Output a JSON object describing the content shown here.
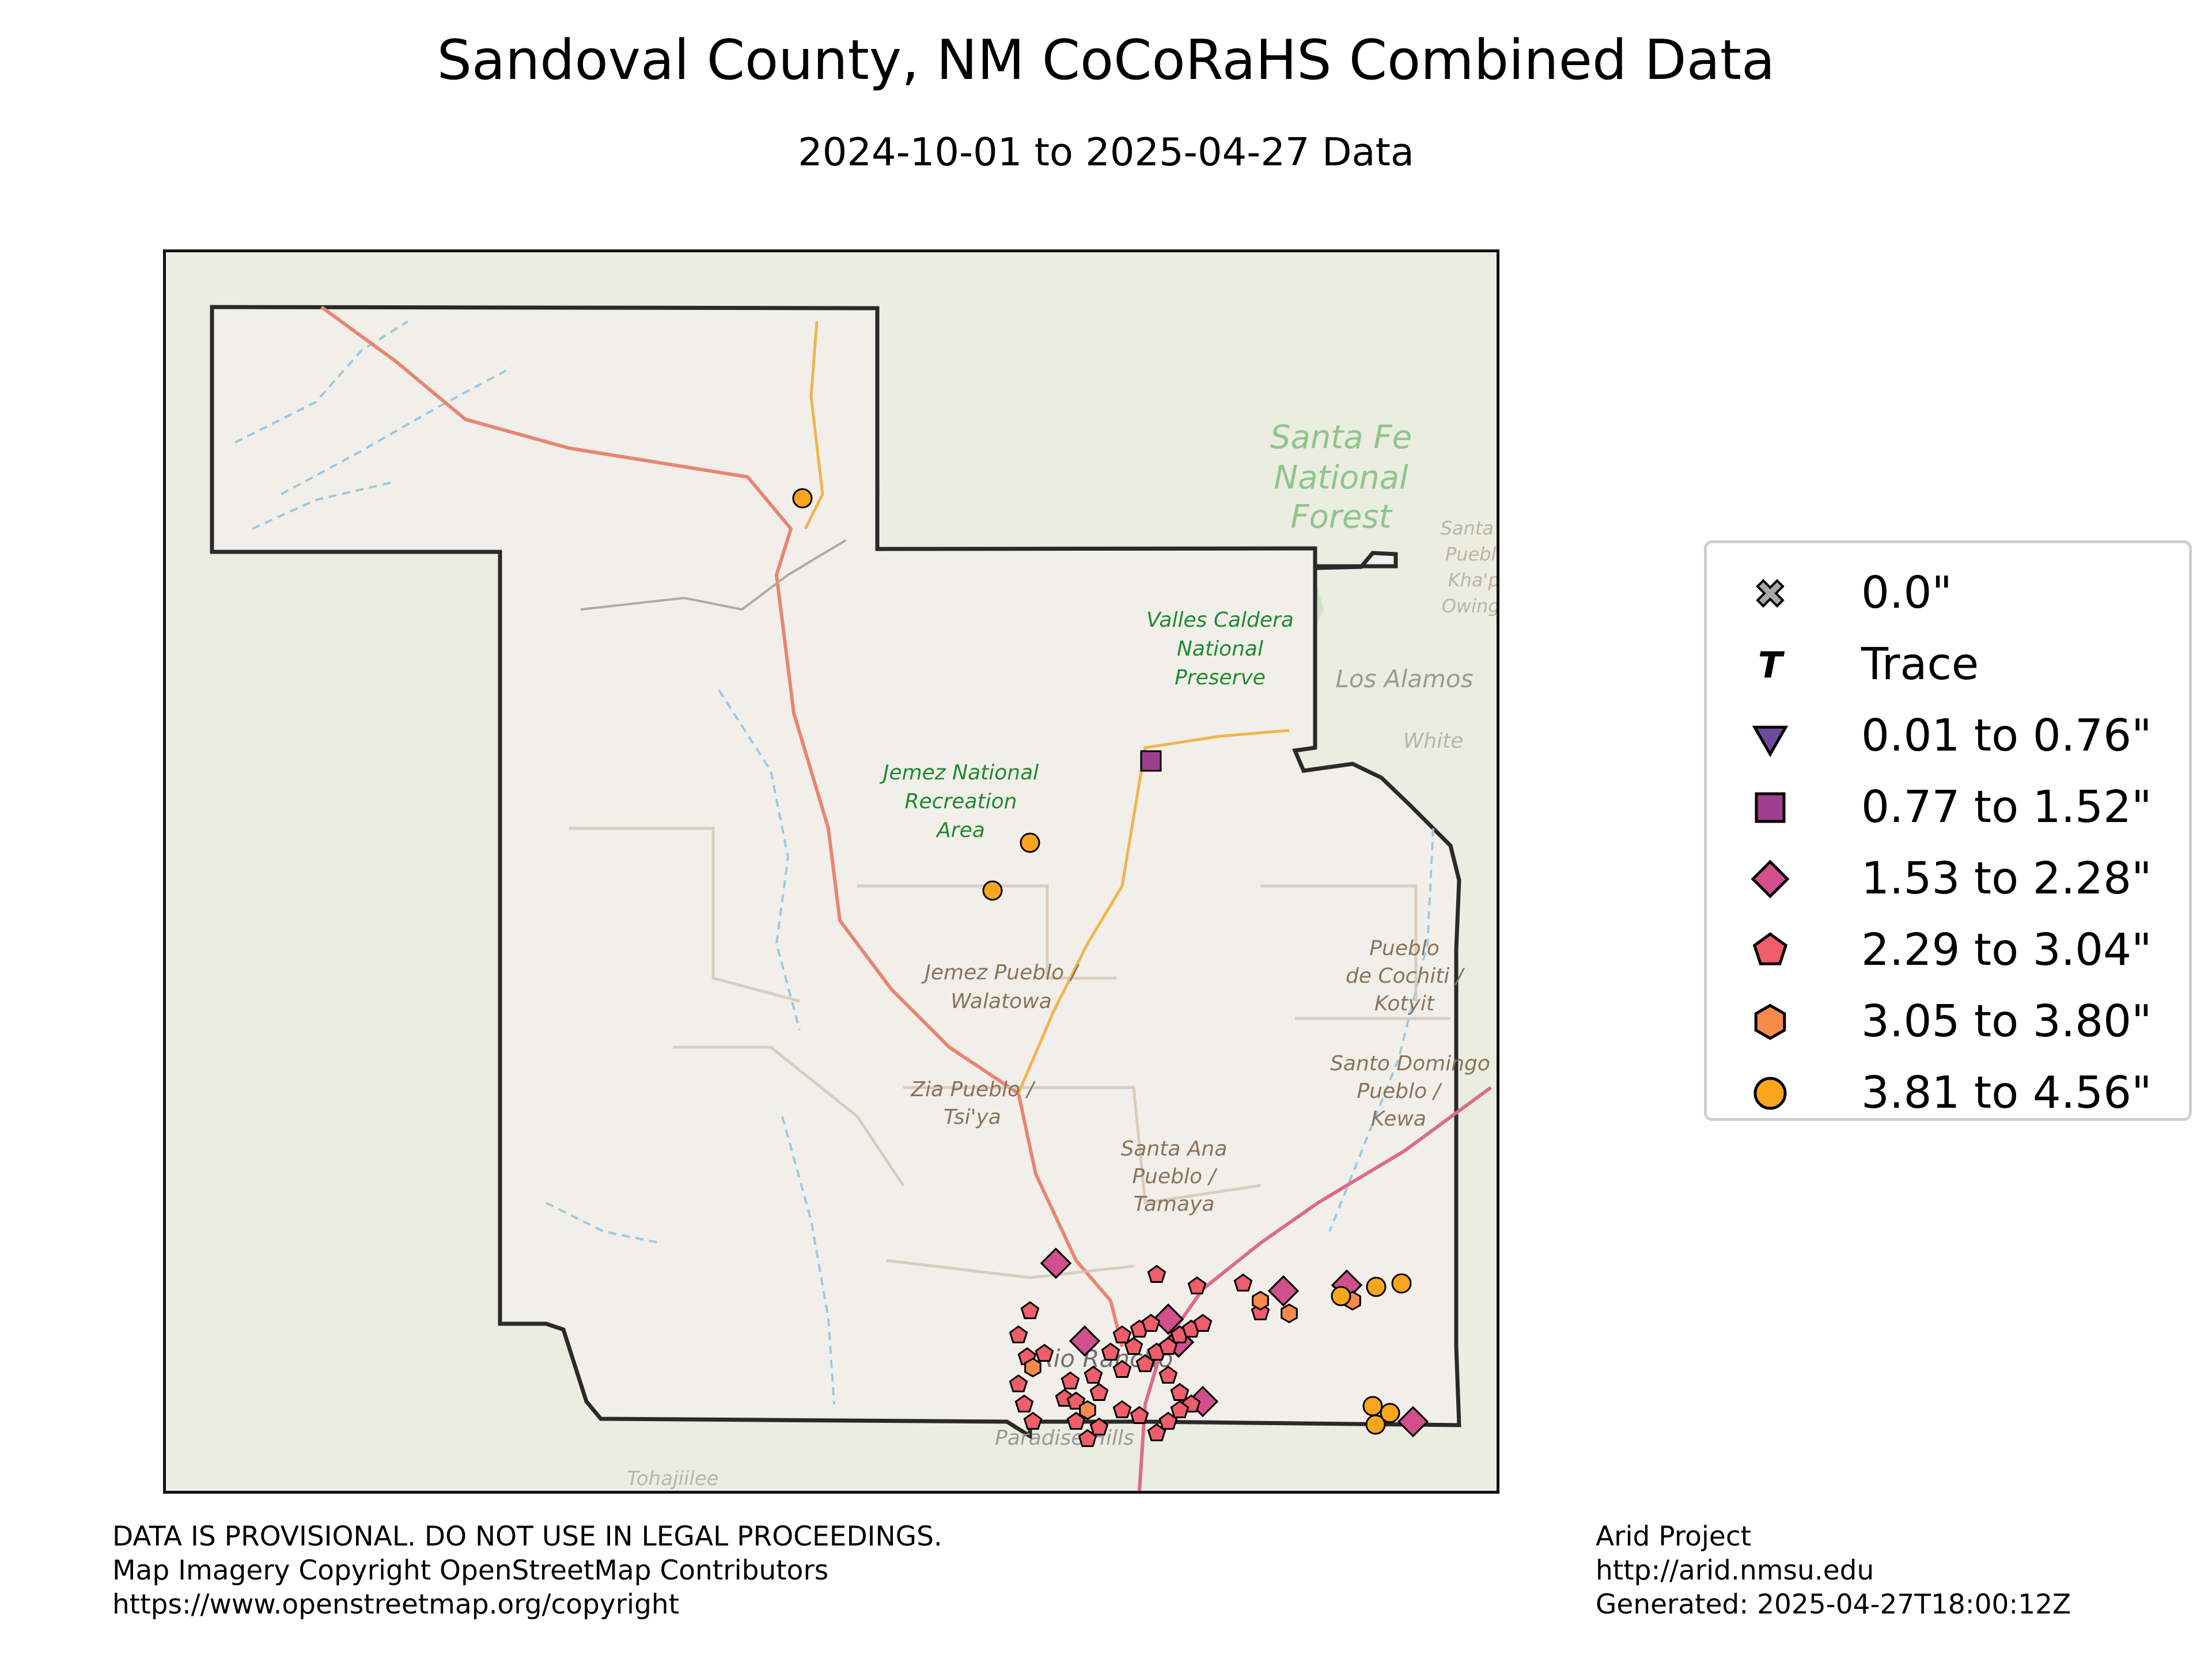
{
  "title": "Sandoval County, NM CoCoRaHS Combined Data",
  "subtitle": "2024-10-01 to 2025-04-27 Data",
  "colors": {
    "zero": "#a8a8a8",
    "trace": "#000000",
    "r1": "#6a4c9c",
    "r2": "#9c3f8f",
    "r3": "#d14f8c",
    "r4": "#f05d6b",
    "r5": "#f88a4c",
    "r6": "#f9a61c",
    "county_border": "#2a2a2a"
  },
  "map": {
    "place_labels": [
      "Santa Fe",
      "National",
      "Forest",
      "Valles Caldera",
      "National",
      "Preserve",
      "Los Alamos",
      "White",
      "Jemez National",
      "Recreation",
      "Area",
      "Jemez Pueblo /",
      "Walatowa",
      "Pueblo",
      "de Cochiti /",
      "Kotyit",
      "Santo Domingo",
      "Pueblo /",
      "Kewa",
      "Zia Pueblo /",
      "Tsi'ya",
      "Santa Ana",
      "Pueblo /",
      "Tamaya",
      "Rio Rancho",
      "Paradise Hills",
      "Tohajiilee",
      "Santa C",
      "Pueblo",
      "Kha'p'",
      "Owinge"
    ]
  },
  "legend": {
    "items": [
      {
        "label": "0.0\"",
        "symbol": "x-marker-icon",
        "color": "#a8a8a8"
      },
      {
        "label": "Trace",
        "symbol": "trace-t-icon",
        "color": "#000000"
      },
      {
        "label": "0.01 to 0.76\"",
        "symbol": "triangle-down-icon",
        "color": "#6a4c9c"
      },
      {
        "label": "0.77 to 1.52\"",
        "symbol": "square-icon",
        "color": "#9c3f8f"
      },
      {
        "label": "1.53 to 2.28\"",
        "symbol": "diamond-icon",
        "color": "#d14f8c"
      },
      {
        "label": "2.29 to 3.04\"",
        "symbol": "pentagon-icon",
        "color": "#f05d6b"
      },
      {
        "label": "3.05 to 3.80\"",
        "symbol": "hexagon-icon",
        "color": "#f88a4c"
      },
      {
        "label": "3.81 to 4.56\"",
        "symbol": "circle-icon",
        "color": "#f9a61c"
      }
    ]
  },
  "stations": {
    "square": 1,
    "diamond": 8,
    "pentagon": 39,
    "hexagon": 5,
    "circle": 9
  },
  "footer": {
    "left": [
      "DATA IS PROVISIONAL. DO NOT USE IN LEGAL PROCEEDINGS.",
      "Map Imagery Copyright OpenStreetMap Contributors",
      "https://www.openstreetmap.org/copyright"
    ],
    "right": [
      "Arid Project",
      "http://arid.nmsu.edu",
      "Generated: 2025-04-27T18:00:12Z"
    ]
  }
}
